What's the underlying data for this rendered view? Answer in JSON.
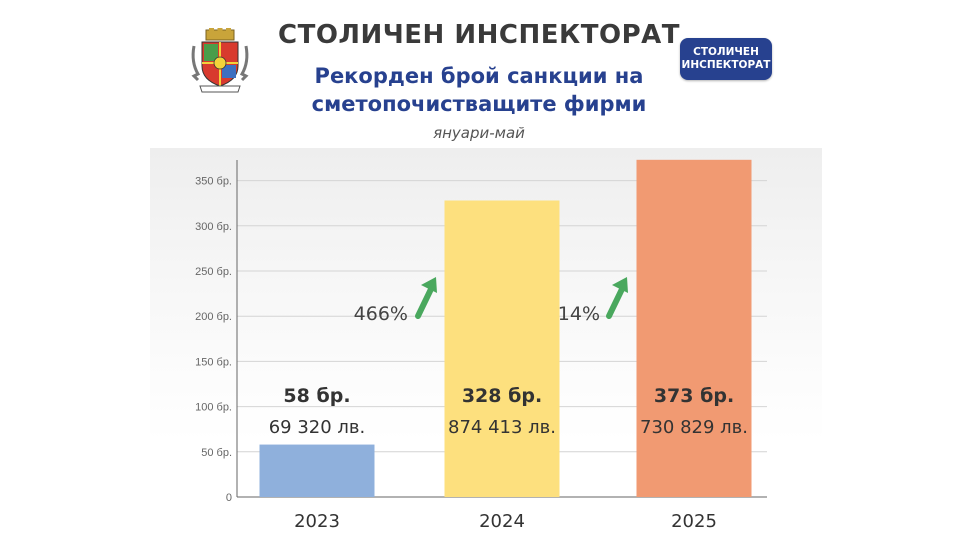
{
  "header": {
    "title": "СТОЛИЧЕН ИНСПЕКТОРАТ",
    "subtitle_line1": "Рекорден брой санкции на",
    "subtitle_line2": "сметопочистващите фирми",
    "period": "януари-май"
  },
  "badge": {
    "line1": "СТОЛИЧЕН",
    "line2": "ИНСПЕКТОРАТ",
    "color": "#27418f"
  },
  "crest": {
    "icon": "sofia-coat-of-arms-icon"
  },
  "chart_data": {
    "type": "bar",
    "categories": [
      "2023",
      "2024",
      "2025"
    ],
    "values": [
      58,
      328,
      373
    ],
    "count_labels": [
      "58 бр.",
      "328 бр.",
      "373 бр."
    ],
    "amount_labels": [
      "69 320 лв.",
      "874 413 лв.",
      "730 829 лв."
    ],
    "colors": [
      "#8fb0dc",
      "#fde07e",
      "#f19a72"
    ],
    "ylim": [
      0,
      350
    ],
    "yticks": [
      0,
      50,
      100,
      150,
      200,
      250,
      300,
      350
    ],
    "ytick_labels": [
      "0",
      "50 бр.",
      "100 бр.",
      "150 бр.",
      "200 бр.",
      "250 бр.",
      "300 бр.",
      "350 бр."
    ],
    "growth": [
      {
        "label": "466%",
        "color": "#4aa85e"
      },
      {
        "label": "14%",
        "color": "#4aa85e"
      }
    ],
    "grid": true
  }
}
